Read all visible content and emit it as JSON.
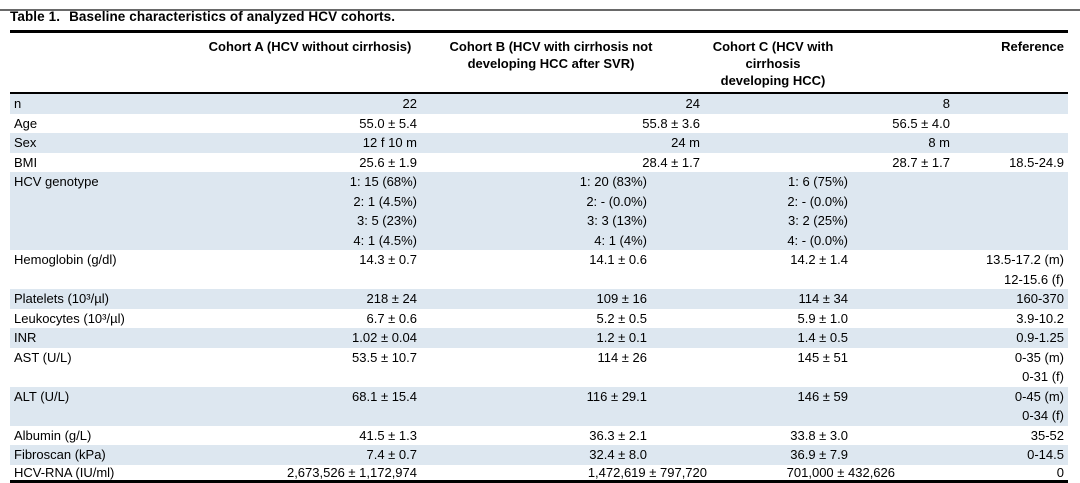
{
  "title": {
    "label": "Table 1.",
    "text": "Baseline characteristics of analyzed HCV cohorts."
  },
  "table": {
    "header": {
      "row_label": "",
      "cohort_a": "Cohort A (HCV without cirrhosis)",
      "cohort_b": "Cohort B (HCV with cirrhosis not\ndeveloping HCC after SVR)",
      "cohort_c": "Cohort C (HCV with\ncirrhosis developing HCC)",
      "reference": "Reference"
    },
    "rows": [
      {
        "label": "n",
        "a": "22",
        "b": "24",
        "c": "8",
        "ref": ""
      },
      {
        "label": "Age",
        "a": "55.0 ± 5.4",
        "b": "55.8 ± 3.6",
        "c": "56.5 ± 4.0",
        "ref": ""
      },
      {
        "label": "Sex",
        "a": "12 f 10 m",
        "b": "24 m",
        "c": "8 m",
        "ref": ""
      },
      {
        "label": "BMI",
        "a": "25.6 ± 1.9",
        "b": "28.4 ± 1.7",
        "c": "28.7 ± 1.7",
        "ref": "18.5-24.9"
      },
      {
        "label": "HCV genotype",
        "a": "1: 15 (68%)\n2: 1 (4.5%)\n3: 5 (23%)\n4: 1 (4.5%)",
        "b": "1: 20 (83%)\n2: - (0.0%)\n3: 3 (13%)\n4: 1 (4%)",
        "c": "1: 6 (75%)\n2: - (0.0%)\n3: 2 (25%)\n4: - (0.0%)",
        "ref": ""
      },
      {
        "label": "Hemoglobin (g/dl)",
        "a": "14.3 ± 0.7",
        "b": "14.1 ± 0.6",
        "c": "14.2 ± 1.4",
        "ref": "13.5-17.2 (m)\n12-15.6 (f)"
      },
      {
        "label": "Platelets (10³/µl)",
        "a": "218 ± 24",
        "b": "109 ± 16",
        "c": "114 ± 34",
        "ref": "160-370"
      },
      {
        "label": "Leukocytes (10³/µl)",
        "a": "6.7 ± 0.6",
        "b": "5.2 ± 0.5",
        "c": "5.9 ± 1.0",
        "ref": "3.9-10.2"
      },
      {
        "label": "INR",
        "a": "1.02 ± 0.04",
        "b": "1.2 ± 0.1",
        "c": "1.4 ± 0.5",
        "ref": "0.9-1.25"
      },
      {
        "label": "AST (U/L)",
        "a": "53.5 ± 10.7",
        "b": "114 ± 26",
        "c": "145 ± 51",
        "ref": "0-35 (m)\n0-31 (f)"
      },
      {
        "label": "ALT (U/L)",
        "a": "68.1 ± 15.4",
        "b": "116 ± 29.1",
        "c": "146 ± 59",
        "ref": "0-45 (m)\n0-34 (f)"
      },
      {
        "label": "Albumin (g/L)",
        "a": "41.5 ± 1.3",
        "b": "36.3 ± 2.1",
        "c": "33.8 ± 3.0",
        "ref": "35-52"
      },
      {
        "label": "Fibroscan (kPa)",
        "a": "7.4 ± 0.7",
        "b": "32.4 ± 8.0",
        "c": "36.9 ± 7.9",
        "ref": "0-14.5"
      },
      {
        "label": "HCV-RNA (IU/ml)",
        "a": "2,673,526 ± 1,172,974",
        "b": "1,472,619 ± 797,720",
        "c": "701,000 ± 432,626",
        "ref": "0"
      }
    ]
  },
  "colors": {
    "row_shade": "#dde7f0",
    "rule": "#000000"
  }
}
